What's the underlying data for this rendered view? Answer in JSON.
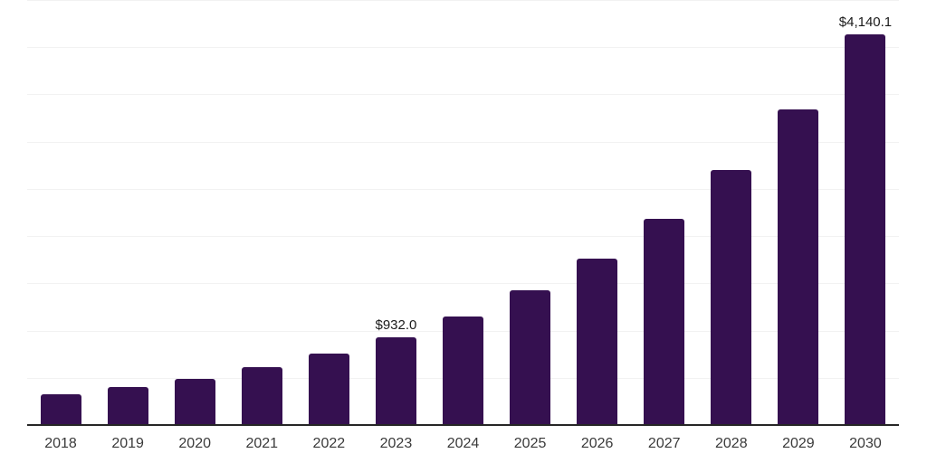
{
  "chart_data": {
    "type": "bar",
    "title": "",
    "xlabel": "",
    "ylabel": "",
    "categories": [
      "2018",
      "2019",
      "2020",
      "2021",
      "2022",
      "2023",
      "2024",
      "2025",
      "2026",
      "2027",
      "2028",
      "2029",
      "2030"
    ],
    "values": [
      321.8,
      398.1,
      492.4,
      609.1,
      753.4,
      932.0,
      1152.9,
      1426.1,
      1764.1,
      2182.3,
      2699.6,
      3339.4,
      4140.1
    ],
    "data_labels": {
      "2023": "$932.0",
      "2030": "$4,140.1"
    },
    "ylim": [
      0,
      4500
    ],
    "ytick_step": 500,
    "grid": "horizontal",
    "yaxis_labels_shown": false,
    "legend": "none",
    "colors": {
      "bar": "#351050",
      "axis_line": "#262626",
      "gridline": "#f2f2f2",
      "data_label": "#1a1a1a",
      "tick_label": "#3a3a3a",
      "background": "#ffffff"
    }
  }
}
